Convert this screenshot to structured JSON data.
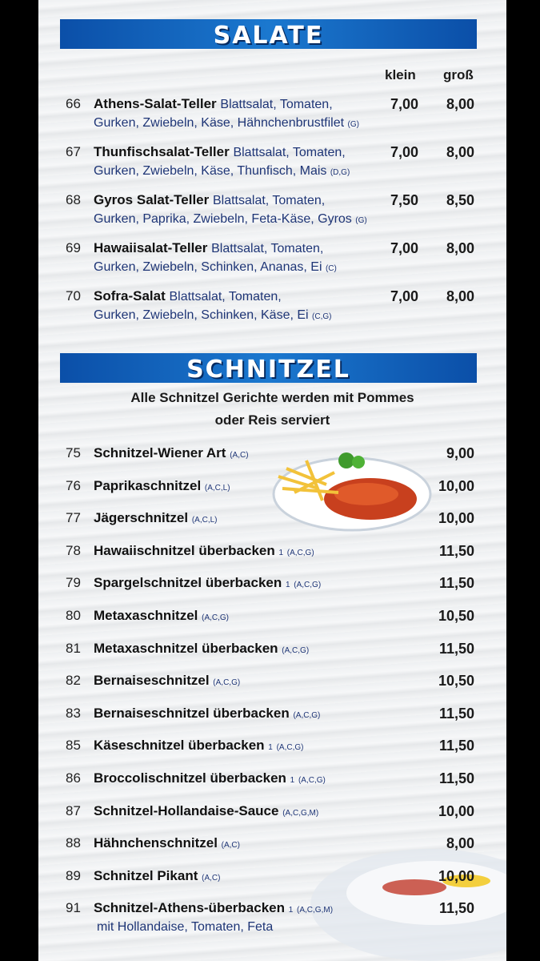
{
  "sections": [
    {
      "title": "SALATE",
      "columns": [
        "klein",
        "groß"
      ],
      "items": [
        {
          "number": "66",
          "name": "Athens-Salat-Teller",
          "description": [
            "Blattsalat, Tomaten,",
            "Gurken, Zwiebeln, Käse, Hähnchenbrustfilet"
          ],
          "allergens": "(G)",
          "prices": [
            "7,00",
            "8,00"
          ]
        },
        {
          "number": "67",
          "name": "Thunfischsalat-Teller",
          "description": [
            "Blattsalat, Tomaten,",
            "Gurken, Zwiebeln, Käse, Thunfisch, Mais"
          ],
          "allergens": "(D,G)",
          "prices": [
            "7,00",
            "8,00"
          ]
        },
        {
          "number": "68",
          "name": "Gyros Salat-Teller",
          "description": [
            "Blattsalat, Tomaten,",
            "Gurken, Paprika, Zwiebeln, Feta-Käse, Gyros"
          ],
          "allergens": "(G)",
          "prices": [
            "7,50",
            "8,50"
          ]
        },
        {
          "number": "69",
          "name": "Hawaiisalat-Teller",
          "description": [
            "Blattsalat, Tomaten,",
            "Gurken, Zwiebeln, Schinken, Ananas, Ei"
          ],
          "allergens": "(C)",
          "prices": [
            "7,00",
            "8,00"
          ]
        },
        {
          "number": "70",
          "name": "Sofra-Salat",
          "description": [
            "Blattsalat, Tomaten,",
            "Gurken, Zwiebeln, Schinken, Käse, Ei"
          ],
          "allergens": "(C,G)",
          "prices": [
            "7,00",
            "8,00"
          ]
        }
      ]
    },
    {
      "title": "SCHNITZEL",
      "subtitle": [
        "Alle Schnitzel Gerichte werden mit Pommes",
        "oder Reis serviert"
      ],
      "items": [
        {
          "number": "75",
          "name": "Schnitzel-Wiener Art",
          "allergens": "(A,C)",
          "price": "9,00"
        },
        {
          "number": "76",
          "name": "Paprikaschnitzel",
          "allergens": "(A,C,L)",
          "price": "10,00"
        },
        {
          "number": "77",
          "name": "Jägerschnitzel",
          "allergens": "(A,C,L)",
          "price": "10,00"
        },
        {
          "number": "78",
          "name": "Hawaiischnitzel überbacken",
          "note": "1",
          "allergens": "(A,C,G)",
          "price": "11,50"
        },
        {
          "number": "79",
          "name": "Spargelschnitzel überbacken",
          "note": "1",
          "allergens": "(A,C,G)",
          "price": "11,50"
        },
        {
          "number": "80",
          "name": "Metaxaschnitzel",
          "allergens": "(A,C,G)",
          "price": "10,50"
        },
        {
          "number": "81",
          "name": "Metaxaschnitzel überbacken",
          "allergens": "(A,C,G)",
          "price": "11,50"
        },
        {
          "number": "82",
          "name": "Bernaiseschnitzel",
          "allergens": "(A,C,G)",
          "price": "10,50"
        },
        {
          "number": "83",
          "name": "Bernaiseschnitzel überbacken",
          "allergens": "(A,C,G)",
          "price": "11,50"
        },
        {
          "number": "85",
          "name": "Käseschnitzel überbacken",
          "note": "1",
          "allergens": "(A,C,G)",
          "price": "11,50"
        },
        {
          "number": "86",
          "name": "Broccolischnitzel überbacken",
          "note": "1",
          "allergens": "(A,C,G)",
          "price": "11,50"
        },
        {
          "number": "87",
          "name": "Schnitzel-Hollandaise-Sauce",
          "allergens": "(A,C,G,M)",
          "price": "10,00"
        },
        {
          "number": "88",
          "name": "Hähnchenschnitzel",
          "allergens": "(A,C)",
          "price": "8,00"
        },
        {
          "number": "89",
          "name": "Schnitzel Pikant",
          "allergens": "(A,C)",
          "price": "10,00"
        },
        {
          "number": "91",
          "name": "Schnitzel-Athens-überbacken",
          "note": "1",
          "allergens": "(A,C,G,M)",
          "price": "11,50",
          "description": [
            "mit Hollandaise, Tomaten, Feta"
          ]
        }
      ]
    }
  ]
}
